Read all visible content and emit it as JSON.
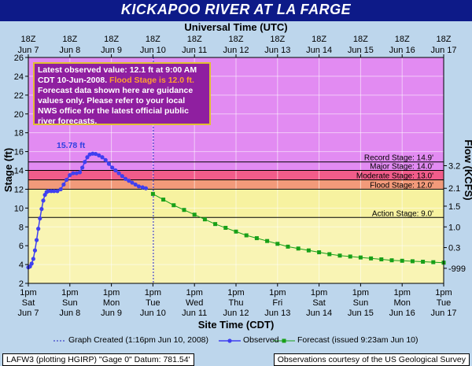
{
  "title": "KICKAPOO RIVER  AT LA FARGE",
  "top_axis_title": "Universal Time (UTC)",
  "bottom_axis_title": "Site Time (CDT)",
  "left_axis_title": "Stage (ft)",
  "right_axis_title": "Flow (KCFS)",
  "top_ticks": [
    {
      "l1": "18Z",
      "l2": "Jun 7"
    },
    {
      "l1": "18Z",
      "l2": "Jun 8"
    },
    {
      "l1": "18Z",
      "l2": "Jun 9"
    },
    {
      "l1": "18Z",
      "l2": "Jun 10"
    },
    {
      "l1": "18Z",
      "l2": "Jun 11"
    },
    {
      "l1": "18Z",
      "l2": "Jun 12"
    },
    {
      "l1": "18Z",
      "l2": "Jun 13"
    },
    {
      "l1": "18Z",
      "l2": "Jun 14"
    },
    {
      "l1": "18Z",
      "l2": "Jun 15"
    },
    {
      "l1": "18Z",
      "l2": "Jun 16"
    },
    {
      "l1": "18Z",
      "l2": "Jun 17"
    }
  ],
  "bottom_ticks": [
    {
      "l1": "1pm",
      "l2": "Sat",
      "l3": "Jun 7"
    },
    {
      "l1": "1pm",
      "l2": "Sun",
      "l3": "Jun 8"
    },
    {
      "l1": "1pm",
      "l2": "Mon",
      "l3": "Jun 9"
    },
    {
      "l1": "1pm",
      "l2": "Tue",
      "l3": "Jun 10"
    },
    {
      "l1": "1pm",
      "l2": "Wed",
      "l3": "Jun 11"
    },
    {
      "l1": "1pm",
      "l2": "Thu",
      "l3": "Jun 12"
    },
    {
      "l1": "1pm",
      "l2": "Fri",
      "l3": "Jun 13"
    },
    {
      "l1": "1pm",
      "l2": "Sat",
      "l3": "Jun 14"
    },
    {
      "l1": "1pm",
      "l2": "Sun",
      "l3": "Jun 15"
    },
    {
      "l1": "1pm",
      "l2": "Mon",
      "l3": "Jun 16"
    },
    {
      "l1": "1pm",
      "l2": "Tue",
      "l3": "Jun 17"
    }
  ],
  "y_ticks": [
    "2",
    "4",
    "6",
    "8",
    "10",
    "12",
    "14",
    "16",
    "18",
    "20",
    "22",
    "24",
    "26"
  ],
  "flow_ticks": [
    {
      "stage": 3.6,
      "label": "-999"
    },
    {
      "stage": 5.8,
      "label": "0.3"
    },
    {
      "stage": 8.0,
      "label": "1.0"
    },
    {
      "stage": 10.2,
      "label": "1.5"
    },
    {
      "stage": 12.1,
      "label": "2.1"
    },
    {
      "stage": 14.5,
      "label": "3.2"
    }
  ],
  "info_box": {
    "line1": "Latest observed value: 12.1 ft at 9:00 AM",
    "line2a": "CDT 10-Jun-2008. ",
    "line2b": "Flood Stage is 12.0 ft.",
    "line3": "Forecast data shown here are guidance",
    "line4": "values only. Please refer to your local",
    "line5": "NWS office for the latest official public",
    "line6": "river forecasts."
  },
  "peak_label": "15.78 ft",
  "legend": {
    "created": "Graph Created (1:16pm Jun 10, 2008)",
    "observed": "Observed",
    "forecast": "Forecast (issued 9:23am Jun 10)"
  },
  "footer": {
    "left": "LAFW3 (plotting HGIRP)  \"Gage 0\" Datum: 781.54'",
    "right": "Observations courtesy of the  US Geological Survey"
  },
  "colors": {
    "plot_background": "#e28bf2",
    "record_band": "#f15c8a",
    "moderate_band": "#f29a7a",
    "flood_band": "#f7f2a0",
    "observed": "#3f3ff0",
    "forecast": "#18a018"
  },
  "chart_data": {
    "type": "line",
    "title": "KICKAPOO RIVER  AT LA FARGE",
    "xlabel": "Site Time (CDT)",
    "ylabel": "Stage (ft)",
    "y2label": "Flow (KCFS)",
    "ylim": [
      2,
      26
    ],
    "xlim": [
      "Jun 7 1pm",
      "Jun 17 1pm"
    ],
    "x_units": "days since Jun 7 1pm CDT",
    "stages": [
      {
        "name": "Record Stage",
        "label": "Record Stage: 14.9'",
        "value": 14.9
      },
      {
        "name": "Major Stage",
        "label": "Major Stage: 14.0'",
        "value": 14.0
      },
      {
        "name": "Moderate Stage",
        "label": "Moderate Stage: 13.0'",
        "value": 13.0
      },
      {
        "name": "Flood Stage",
        "label": "Flood Stage: 12.0'",
        "value": 12.0
      },
      {
        "name": "Action Stage",
        "label": "Action Stage: 9.0'",
        "value": 9.0
      }
    ],
    "graph_created_x": 3.01,
    "peak": {
      "x": 1.55,
      "y": 15.78
    },
    "series": [
      {
        "name": "Observed",
        "points": [
          [
            0.0,
            3.7
          ],
          [
            0.04,
            3.8
          ],
          [
            0.08,
            4.1
          ],
          [
            0.12,
            4.6
          ],
          [
            0.16,
            5.5
          ],
          [
            0.2,
            6.6
          ],
          [
            0.24,
            7.8
          ],
          [
            0.28,
            8.9
          ],
          [
            0.32,
            9.9
          ],
          [
            0.36,
            10.8
          ],
          [
            0.4,
            11.4
          ],
          [
            0.44,
            11.7
          ],
          [
            0.48,
            11.8
          ],
          [
            0.55,
            11.8
          ],
          [
            0.62,
            11.8
          ],
          [
            0.7,
            11.8
          ],
          [
            0.78,
            12.0
          ],
          [
            0.85,
            12.5
          ],
          [
            0.92,
            13.0
          ],
          [
            1.0,
            13.5
          ],
          [
            1.08,
            13.7
          ],
          [
            1.16,
            13.7
          ],
          [
            1.24,
            13.8
          ],
          [
            1.3,
            14.3
          ],
          [
            1.36,
            14.9
          ],
          [
            1.42,
            15.4
          ],
          [
            1.48,
            15.7
          ],
          [
            1.55,
            15.78
          ],
          [
            1.62,
            15.75
          ],
          [
            1.7,
            15.6
          ],
          [
            1.78,
            15.4
          ],
          [
            1.86,
            15.1
          ],
          [
            1.94,
            14.7
          ],
          [
            2.02,
            14.3
          ],
          [
            2.1,
            14.0
          ],
          [
            2.18,
            13.7
          ],
          [
            2.26,
            13.4
          ],
          [
            2.34,
            13.1
          ],
          [
            2.42,
            12.9
          ],
          [
            2.5,
            12.7
          ],
          [
            2.58,
            12.5
          ],
          [
            2.66,
            12.3
          ],
          [
            2.75,
            12.2
          ],
          [
            2.83,
            12.1
          ]
        ]
      },
      {
        "name": "Forecast (issued 9:23am Jun 10)",
        "points": [
          [
            3.0,
            11.5
          ],
          [
            3.25,
            10.9
          ],
          [
            3.5,
            10.3
          ],
          [
            3.75,
            9.8
          ],
          [
            4.0,
            9.3
          ],
          [
            4.25,
            8.8
          ],
          [
            4.5,
            8.3
          ],
          [
            4.75,
            7.9
          ],
          [
            5.0,
            7.5
          ],
          [
            5.25,
            7.1
          ],
          [
            5.5,
            6.8
          ],
          [
            5.75,
            6.5
          ],
          [
            6.0,
            6.2
          ],
          [
            6.25,
            5.9
          ],
          [
            6.5,
            5.7
          ],
          [
            6.75,
            5.5
          ],
          [
            7.0,
            5.3
          ],
          [
            7.25,
            5.1
          ],
          [
            7.5,
            4.95
          ],
          [
            7.75,
            4.85
          ],
          [
            8.0,
            4.75
          ],
          [
            8.25,
            4.65
          ],
          [
            8.5,
            4.55
          ],
          [
            8.75,
            4.45
          ],
          [
            9.0,
            4.4
          ],
          [
            9.25,
            4.35
          ],
          [
            9.5,
            4.3
          ],
          [
            9.75,
            4.25
          ],
          [
            10.0,
            4.2
          ]
        ]
      }
    ]
  }
}
